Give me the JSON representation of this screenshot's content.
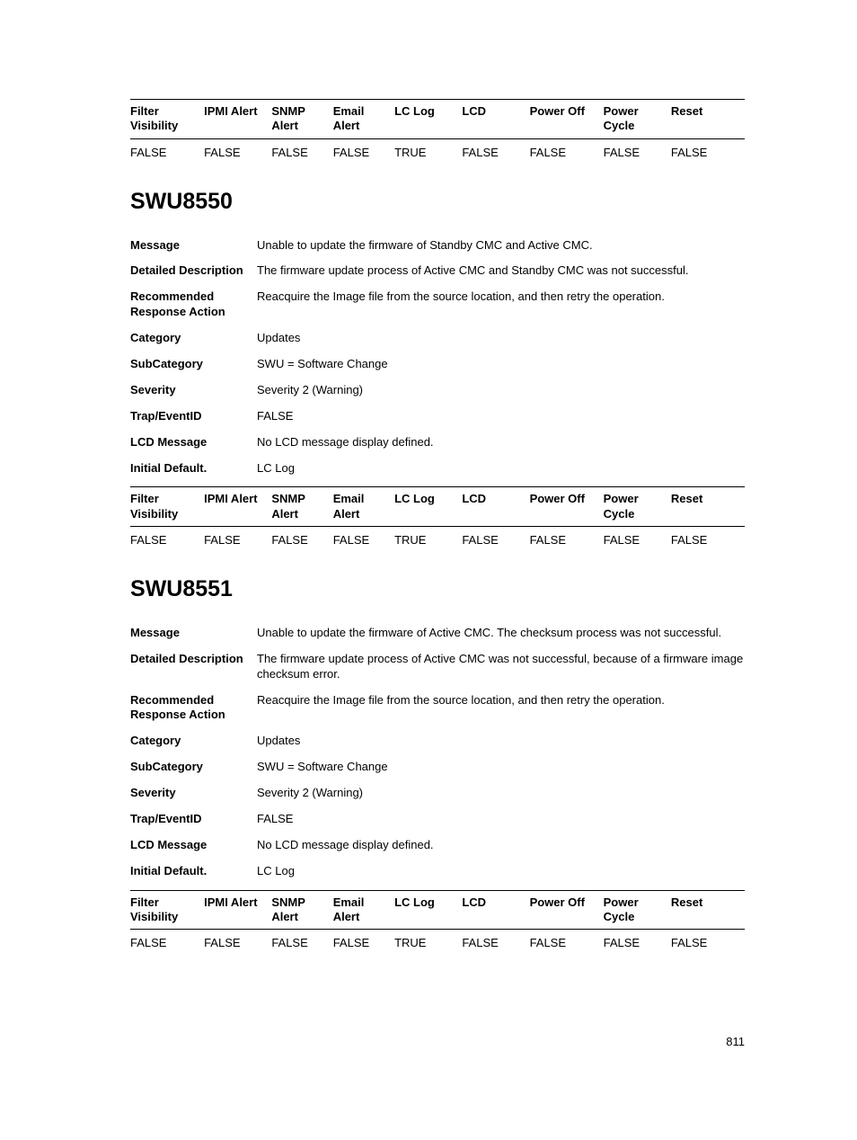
{
  "alert_table_headers": [
    "Filter Visibility",
    "IPMI Alert",
    "SNMP Alert",
    "Email Alert",
    "LC Log",
    "LCD",
    "Power Off",
    "Power Cycle",
    "Reset"
  ],
  "top_table_row": [
    "FALSE",
    "FALSE",
    "FALSE",
    "FALSE",
    "TRUE",
    "FALSE",
    "FALSE",
    "FALSE",
    "FALSE"
  ],
  "section1": {
    "title": "SWU8550",
    "details": {
      "message_label": "Message",
      "message_value": "Unable to update the firmware of Standby CMC and Active CMC.",
      "detailed_label": "Detailed Description",
      "detailed_value": "The firmware update process of Active CMC and Standby CMC was not successful.",
      "recommended_label": "Recommended Response Action",
      "recommended_value": "Reacquire the Image file from the source location, and then retry the operation.",
      "category_label": "Category",
      "category_value": "Updates",
      "subcategory_label": "SubCategory",
      "subcategory_value": "SWU = Software Change",
      "severity_label": "Severity",
      "severity_value": "Severity 2 (Warning)",
      "trap_label": "Trap/EventID",
      "trap_value": "FALSE",
      "lcd_label": "LCD Message",
      "lcd_value": "No LCD message display defined.",
      "initial_label": "Initial Default.",
      "initial_value": "LC Log"
    },
    "table_row": [
      "FALSE",
      "FALSE",
      "FALSE",
      "FALSE",
      "TRUE",
      "FALSE",
      "FALSE",
      "FALSE",
      "FALSE"
    ]
  },
  "section2": {
    "title": "SWU8551",
    "details": {
      "message_label": "Message",
      "message_value": "Unable to update the firmware of Active CMC. The checksum process was not successful.",
      "detailed_label": "Detailed Description",
      "detailed_value": "The firmware update process of Active CMC was not successful, because of a firmware image checksum error.",
      "recommended_label": "Recommended Response Action",
      "recommended_value": "Reacquire the Image file from the source location, and then retry the operation.",
      "category_label": "Category",
      "category_value": "Updates",
      "subcategory_label": "SubCategory",
      "subcategory_value": "SWU = Software Change",
      "severity_label": "Severity",
      "severity_value": "Severity 2 (Warning)",
      "trap_label": "Trap/EventID",
      "trap_value": "FALSE",
      "lcd_label": "LCD Message",
      "lcd_value": "No LCD message display defined.",
      "initial_label": "Initial Default.",
      "initial_value": "LC Log"
    },
    "table_row": [
      "FALSE",
      "FALSE",
      "FALSE",
      "FALSE",
      "TRUE",
      "FALSE",
      "FALSE",
      "FALSE",
      "FALSE"
    ]
  },
  "page_number": "811",
  "col_widths": [
    "12%",
    "11%",
    "10%",
    "10%",
    "11%",
    "11%",
    "12%",
    "11%",
    "12%"
  ]
}
